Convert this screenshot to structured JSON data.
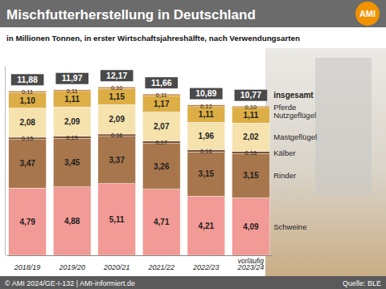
{
  "chart_data": {
    "type": "bar",
    "stacked": true,
    "data_labels": true,
    "tick_labels": "x",
    "title": "Mischfutterherstellung in Deutschland",
    "subtitle": "in Millionen Tonnen, in erster Wirtschaftsjahreshälfte, nach Verwendungsarten",
    "logo": "AMI",
    "categories": [
      "2018/19",
      "2019/20",
      "2020/21",
      "2021/22",
      "2022/23",
      "2023/24"
    ],
    "annotations": [
      "vorläufig"
    ],
    "ylim": [
      0,
      13.5
    ],
    "yticks": [],
    "series": [
      {
        "name": "Schweine",
        "color": "#f29a95",
        "values": [
          4.79,
          4.88,
          5.11,
          4.71,
          4.21,
          4.09
        ],
        "value_labels": [
          "4,79",
          "4,88",
          "5,11",
          "4,71",
          "4,21",
          "4,09"
        ]
      },
      {
        "name": "Rinder",
        "color": "#a8764c",
        "values": [
          3.47,
          3.45,
          3.37,
          3.26,
          3.15,
          3.15
        ],
        "value_labels": [
          "3,47",
          "3,45",
          "3,37",
          "3,26",
          "3,15",
          "3,15"
        ]
      },
      {
        "name": "Kälber",
        "color": "#7a5234",
        "values": [
          0.15,
          0.15,
          0.16,
          0.17,
          0.16,
          0.16
        ],
        "value_labels": [
          "0,15",
          "0,15",
          "0,16",
          "0,17",
          "0,16",
          "0,16"
        ]
      },
      {
        "name": "Mastgeflügel",
        "color": "#f5e2ad",
        "values": [
          2.08,
          2.09,
          2.09,
          2.07,
          1.96,
          2.02
        ],
        "value_labels": [
          "2,08",
          "2,09",
          "2,09",
          "2,07",
          "1,96",
          "2,02"
        ]
      },
      {
        "name": "Nutzgeflügel",
        "color": "#dcae45",
        "values": [
          1.1,
          1.11,
          1.15,
          1.17,
          1.11,
          1.11
        ],
        "value_labels": [
          "1,10",
          "1,11",
          "1,15",
          "1,17",
          "1,11",
          "1,11"
        ]
      },
      {
        "name": "Pferde",
        "color": "#c5803a",
        "values": [
          0.11,
          0.11,
          0.1,
          0.11,
          0.12,
          0.1
        ],
        "value_labels": [
          "0,11",
          "0,11",
          "0,10",
          "0,11",
          "0,12",
          "0,10"
        ]
      }
    ],
    "total": {
      "name": "insgesamt",
      "color": "#4a4a4a",
      "values": [
        11.88,
        11.97,
        12.17,
        11.66,
        10.89,
        10.77
      ],
      "value_labels": [
        "11,88",
        "11,97",
        "12,17",
        "11,66",
        "10,89",
        "10,77"
      ]
    },
    "footer": "© AMI 2024/GE-I-132 | AMI-informiert.de",
    "source": "Quelle: BLE"
  }
}
